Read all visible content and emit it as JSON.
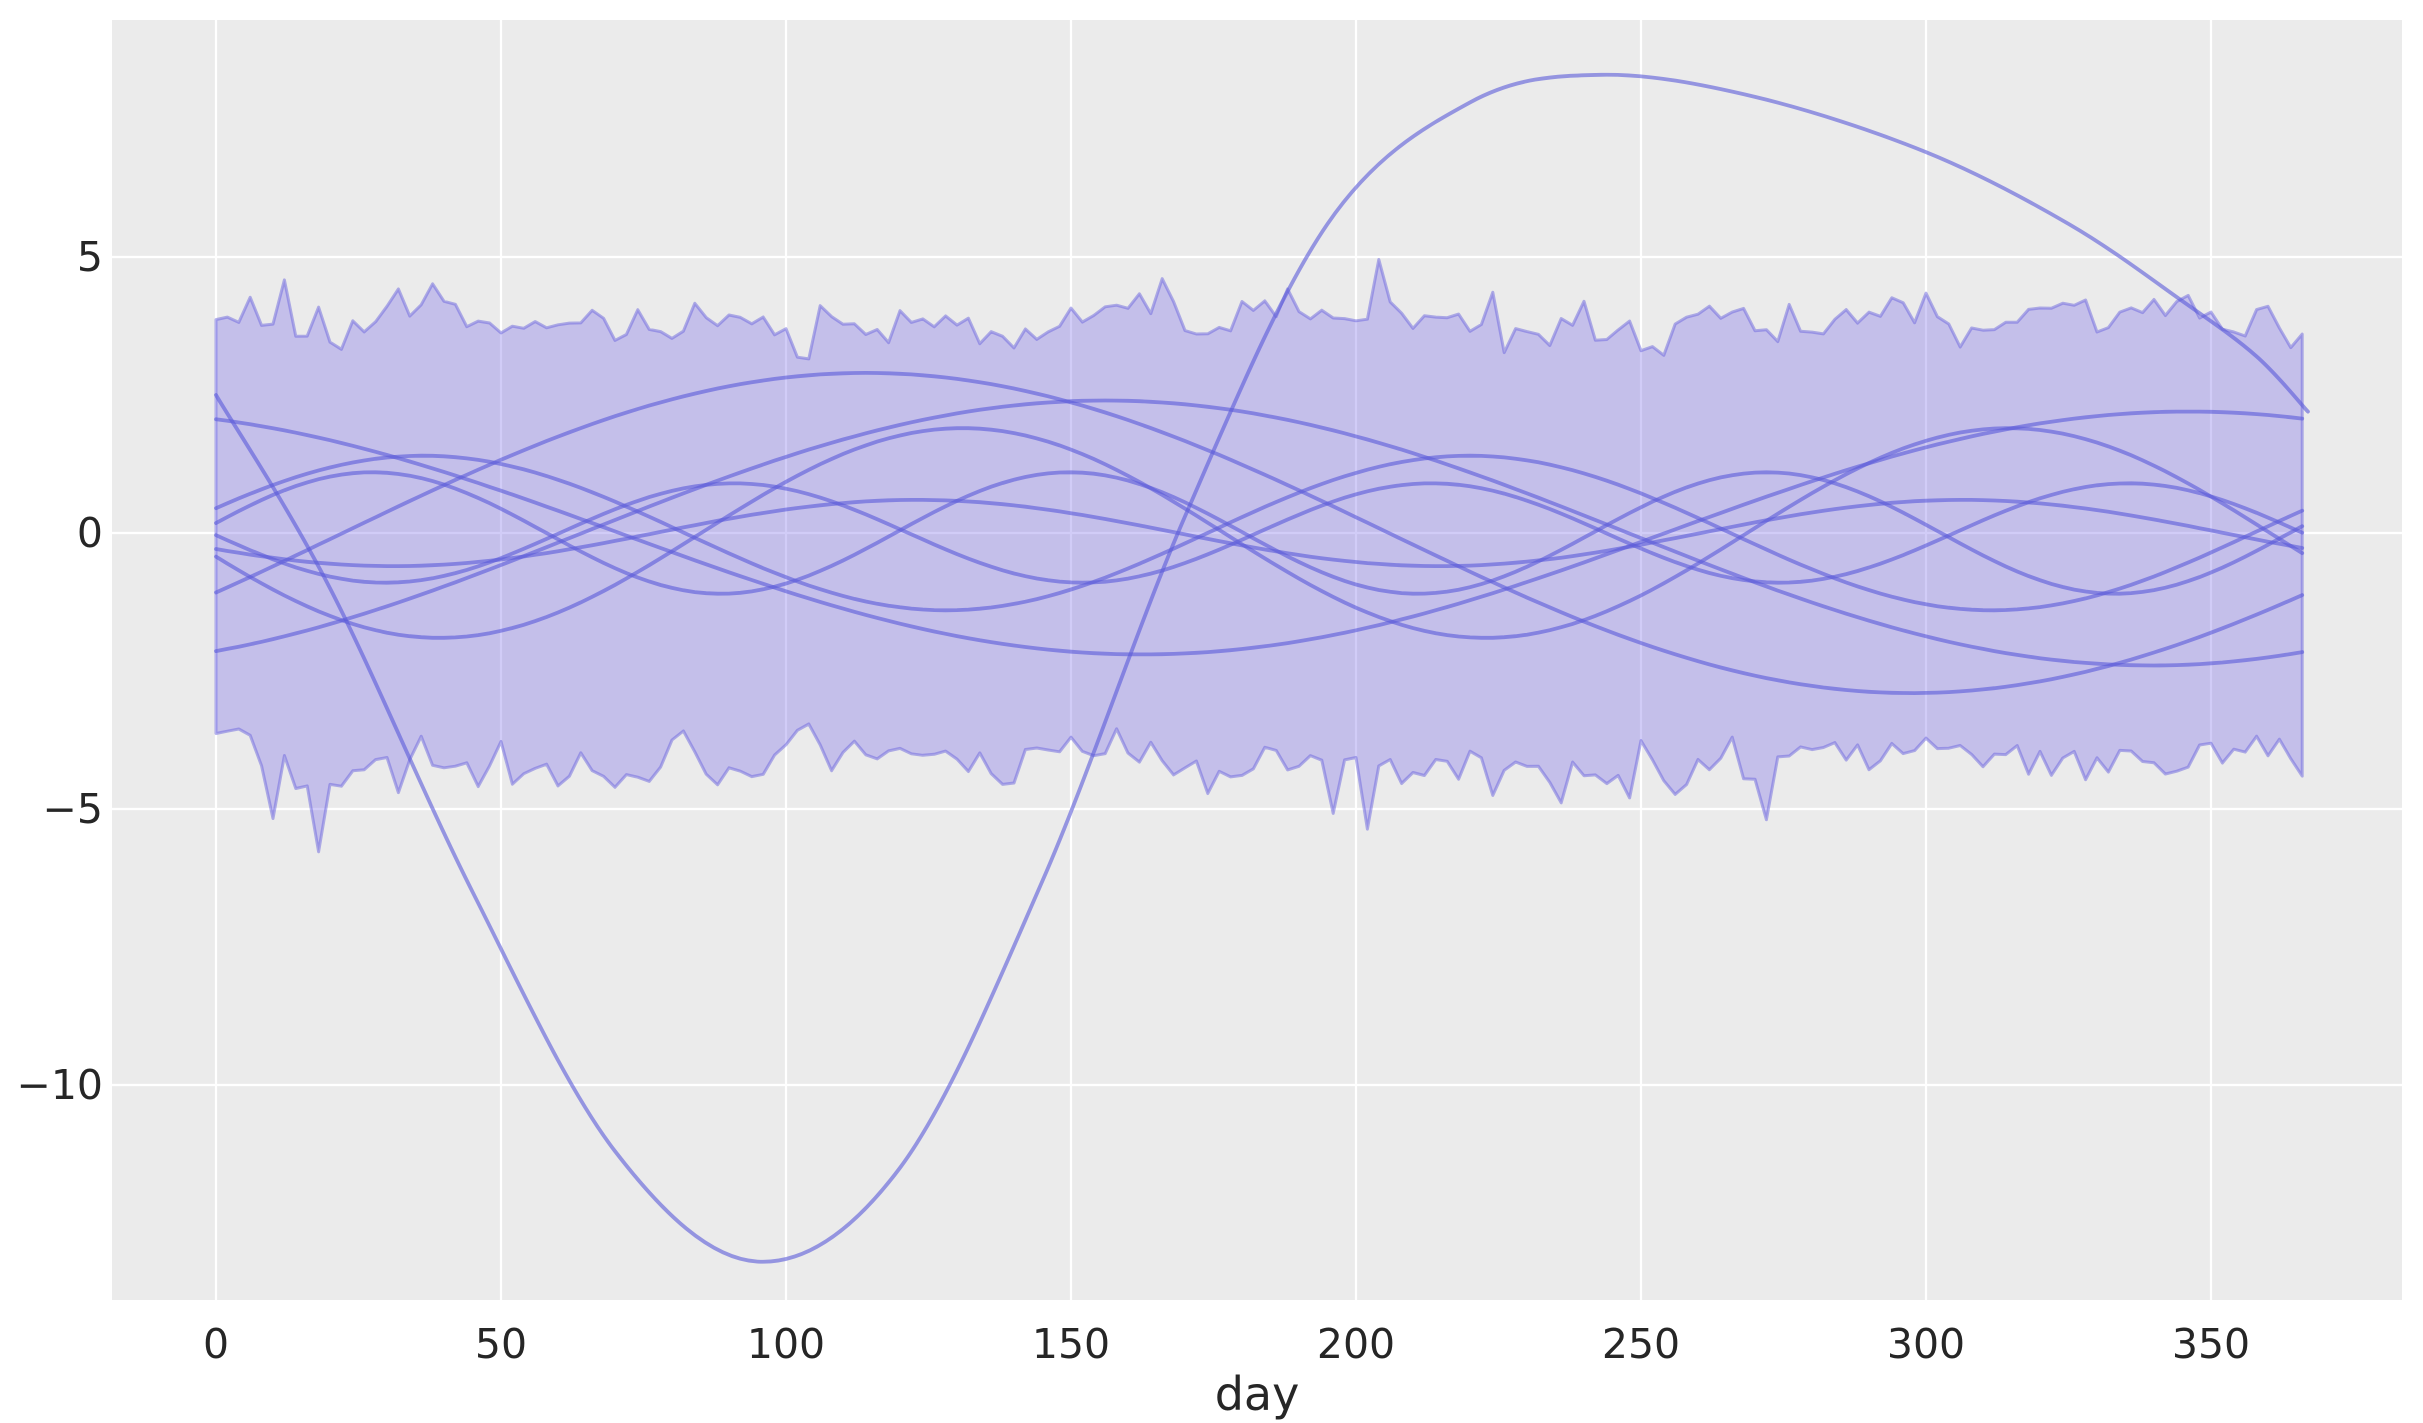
{
  "chart_data": {
    "type": "line",
    "title": "",
    "xlabel": "day",
    "ylabel": "",
    "grid": true,
    "legend_position": "none",
    "xlim": [
      -18.2,
      383.5
    ],
    "ylim": [
      -13.9,
      9.3
    ],
    "x_span_days": [
      0,
      367
    ],
    "x_ticks": {
      "values": [
        0,
        50,
        100,
        150,
        200,
        250,
        300,
        350
      ],
      "labels": [
        "0",
        "50",
        "100",
        "150",
        "200",
        "250",
        "300",
        "350"
      ]
    },
    "y_ticks": {
      "values": [
        5,
        0,
        -5,
        -10
      ],
      "labels": [
        "5",
        "0",
        "−5",
        "−10"
      ]
    },
    "band": {
      "description": "noisy envelope band filled between upper and lower bounds",
      "x_start": 0,
      "x_end": 367,
      "step": 2,
      "upper_mean": 3.82,
      "lower_mean": -4.03,
      "noise_sd": 0.26,
      "spike_prob": 0.06,
      "spike_max": 1.05,
      "wobble_amp": 0.16,
      "wobble_cycles": 2.3,
      "seed": 1337
    },
    "sine_series": [
      {
        "amp": 2.2,
        "cycles": 1,
        "phase": 1.93
      },
      {
        "amp": 2.9,
        "cycles": 1,
        "phase": -0.381
      },
      {
        "amp": 2.4,
        "cycles": 1,
        "phase": -1.1
      },
      {
        "amp": 1.4,
        "cycles": 2,
        "phase": 0.327
      },
      {
        "amp": 1.9,
        "cycles": 2,
        "phase": 3.369
      },
      {
        "amp": 0.6,
        "cycles": 2,
        "phase": 3.646
      },
      {
        "amp": 1.1,
        "cycles": 3,
        "phase": 0.164
      },
      {
        "amp": 0.9,
        "cycles": 3,
        "phase": 3.186
      }
    ],
    "outlier_series": {
      "description": "large-amplitude smooth curve",
      "points": [
        [
          0,
          2.5
        ],
        [
          20,
          -1.0
        ],
        [
          45,
          -6.5
        ],
        [
          70,
          -11.2
        ],
        [
          95,
          -13.2
        ],
        [
          120,
          -11.5
        ],
        [
          145,
          -6.3
        ],
        [
          170,
          0.3
        ],
        [
          195,
          5.6
        ],
        [
          220,
          7.8
        ],
        [
          243,
          8.3
        ],
        [
          270,
          7.9
        ],
        [
          300,
          6.9
        ],
        [
          325,
          5.6
        ],
        [
          345,
          4.2
        ],
        [
          358,
          3.2
        ],
        [
          367,
          2.2
        ]
      ]
    },
    "colors": {
      "figure_bg": "#ffffff",
      "axes_bg": "#ebebeb",
      "grid": "#ffffff",
      "band_fill": "#7b6ce8",
      "band_fill_opacity": 0.35,
      "band_edge": "#6c66dd",
      "band_edge_opacity": 0.5,
      "line": "#5a5ad8",
      "line_opacity": 0.6,
      "tick_label": "#262626"
    }
  }
}
